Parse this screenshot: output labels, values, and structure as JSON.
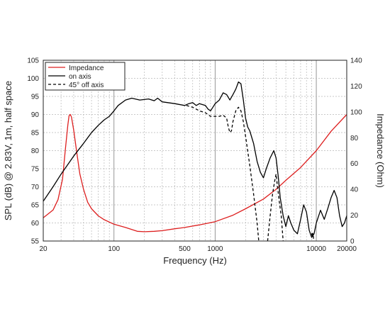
{
  "chart_data": {
    "type": "line",
    "xlabel": "Frequency (Hz)",
    "ylabel": "SPL (dB) @ 2.83V, 1m, half space",
    "y2label": "Impedance (Ohm)",
    "x_scale": "log",
    "xlim": [
      20,
      20000
    ],
    "ylim": [
      55,
      105
    ],
    "y2lim": [
      0,
      140
    ],
    "x_ticks": [
      20,
      100,
      500,
      1000,
      10000,
      20000
    ],
    "x_tick_labels": [
      "20",
      "100",
      "500",
      "1000",
      "10000",
      "20000"
    ],
    "y_ticks": [
      55,
      60,
      65,
      70,
      75,
      80,
      85,
      90,
      95,
      100,
      105
    ],
    "y2_ticks": [
      0,
      20,
      40,
      60,
      80,
      100,
      120,
      140
    ],
    "grid": true,
    "legend_position": "top-left",
    "series": [
      {
        "name": "Impedance",
        "axis": "right",
        "color": "#dd1f1f",
        "dash": "solid",
        "points": [
          [
            20,
            18
          ],
          [
            25,
            24
          ],
          [
            28,
            32
          ],
          [
            31,
            48
          ],
          [
            33,
            70
          ],
          [
            35,
            90
          ],
          [
            36,
            97
          ],
          [
            37,
            98
          ],
          [
            38,
            96
          ],
          [
            40,
            86
          ],
          [
            43,
            68
          ],
          [
            46,
            52
          ],
          [
            50,
            40
          ],
          [
            55,
            30
          ],
          [
            60,
            25
          ],
          [
            70,
            19.5
          ],
          [
            80,
            16.5
          ],
          [
            100,
            13
          ],
          [
            130,
            10.5
          ],
          [
            170,
            7.5
          ],
          [
            200,
            7.2
          ],
          [
            250,
            7.5
          ],
          [
            300,
            8
          ],
          [
            400,
            9.5
          ],
          [
            500,
            10.5
          ],
          [
            700,
            12.5
          ],
          [
            1000,
            15
          ],
          [
            1500,
            20
          ],
          [
            2000,
            25
          ],
          [
            3000,
            32.5
          ],
          [
            4000,
            40
          ],
          [
            5000,
            47
          ],
          [
            7000,
            57
          ],
          [
            10000,
            70
          ],
          [
            14000,
            85
          ],
          [
            20000,
            98
          ]
        ]
      },
      {
        "name": "on axis",
        "axis": "left",
        "color": "#000000",
        "dash": "solid",
        "points": [
          [
            20,
            66
          ],
          [
            25,
            70
          ],
          [
            30,
            73.5
          ],
          [
            40,
            78.5
          ],
          [
            50,
            82
          ],
          [
            60,
            85
          ],
          [
            70,
            87
          ],
          [
            80,
            88.5
          ],
          [
            90,
            89.5
          ],
          [
            100,
            91
          ],
          [
            110,
            92.5
          ],
          [
            130,
            94
          ],
          [
            150,
            94.5
          ],
          [
            180,
            94
          ],
          [
            220,
            94.3
          ],
          [
            250,
            93.8
          ],
          [
            270,
            94.5
          ],
          [
            300,
            93.5
          ],
          [
            400,
            93
          ],
          [
            500,
            92.5
          ],
          [
            550,
            93
          ],
          [
            600,
            93.3
          ],
          [
            650,
            92.5
          ],
          [
            700,
            93
          ],
          [
            800,
            92.5
          ],
          [
            850,
            91.5
          ],
          [
            900,
            91
          ],
          [
            950,
            92
          ],
          [
            1000,
            93
          ],
          [
            1100,
            94
          ],
          [
            1200,
            96
          ],
          [
            1300,
            95.5
          ],
          [
            1400,
            94
          ],
          [
            1500,
            95.5
          ],
          [
            1600,
            97
          ],
          [
            1700,
            99
          ],
          [
            1800,
            98.5
          ],
          [
            1900,
            94
          ],
          [
            2000,
            89
          ],
          [
            2100,
            86.5
          ],
          [
            2200,
            85.5
          ],
          [
            2400,
            82
          ],
          [
            2600,
            77
          ],
          [
            2800,
            74
          ],
          [
            3000,
            72.5
          ],
          [
            3200,
            75
          ],
          [
            3500,
            78
          ],
          [
            3800,
            80
          ],
          [
            4000,
            78
          ],
          [
            4200,
            73
          ],
          [
            4400,
            67
          ],
          [
            4700,
            62
          ],
          [
            5000,
            59
          ],
          [
            5300,
            62
          ],
          [
            5600,
            60
          ],
          [
            6000,
            58
          ],
          [
            6500,
            57
          ],
          [
            7000,
            61
          ],
          [
            7500,
            65
          ],
          [
            8000,
            63
          ],
          [
            8500,
            58
          ],
          [
            9000,
            56
          ],
          [
            9500,
            57
          ],
          [
            10000,
            60
          ],
          [
            11000,
            63.5
          ],
          [
            12000,
            61
          ],
          [
            13000,
            64
          ],
          [
            14000,
            67
          ],
          [
            15000,
            69
          ],
          [
            16000,
            67
          ],
          [
            17000,
            62
          ],
          [
            18000,
            59
          ],
          [
            19000,
            60
          ],
          [
            20000,
            62
          ]
        ]
      },
      {
        "name": "45° off axis",
        "axis": "left",
        "color": "#000000",
        "dash": "dashed",
        "points": [
          [
            520,
            92.5
          ],
          [
            600,
            92
          ],
          [
            700,
            91
          ],
          [
            800,
            90.5
          ],
          [
            900,
            89.5
          ],
          [
            1000,
            89.5
          ],
          [
            1100,
            89.5
          ],
          [
            1200,
            89.8
          ],
          [
            1300,
            89
          ],
          [
            1350,
            86.5
          ],
          [
            1400,
            85
          ],
          [
            1450,
            85.5
          ],
          [
            1500,
            88
          ],
          [
            1600,
            91
          ],
          [
            1700,
            92
          ],
          [
            1800,
            91
          ],
          [
            1900,
            88
          ],
          [
            2000,
            84
          ],
          [
            2200,
            76
          ],
          [
            2400,
            68
          ],
          [
            2600,
            60
          ],
          [
            2700,
            55
          ]
        ]
      },
      {
        "name": "45° off axis",
        "axis": "left",
        "color": "#000000",
        "dash": "dashed",
        "points": [
          [
            3300,
            55
          ],
          [
            3500,
            62
          ],
          [
            3700,
            68
          ],
          [
            3900,
            72
          ],
          [
            4000,
            73.5
          ],
          [
            4100,
            71
          ],
          [
            4300,
            66
          ],
          [
            4500,
            62
          ],
          [
            4700,
            55
          ]
        ]
      },
      {
        "name": "45° off axis",
        "axis": "left",
        "color": "#000000",
        "dash": "dashed",
        "points": [
          [
            9000,
            56.5
          ],
          [
            9100,
            57.5
          ],
          [
            9200,
            56
          ],
          [
            9300,
            57
          ],
          [
            9400,
            55.5
          ]
        ]
      }
    ]
  },
  "legend": [
    {
      "label": "Impedance",
      "color": "#dd1f1f",
      "dash": "solid"
    },
    {
      "label": "on axis",
      "color": "#000000",
      "dash": "solid"
    },
    {
      "label": "45° off axis",
      "color": "#000000",
      "dash": "dashed"
    }
  ]
}
